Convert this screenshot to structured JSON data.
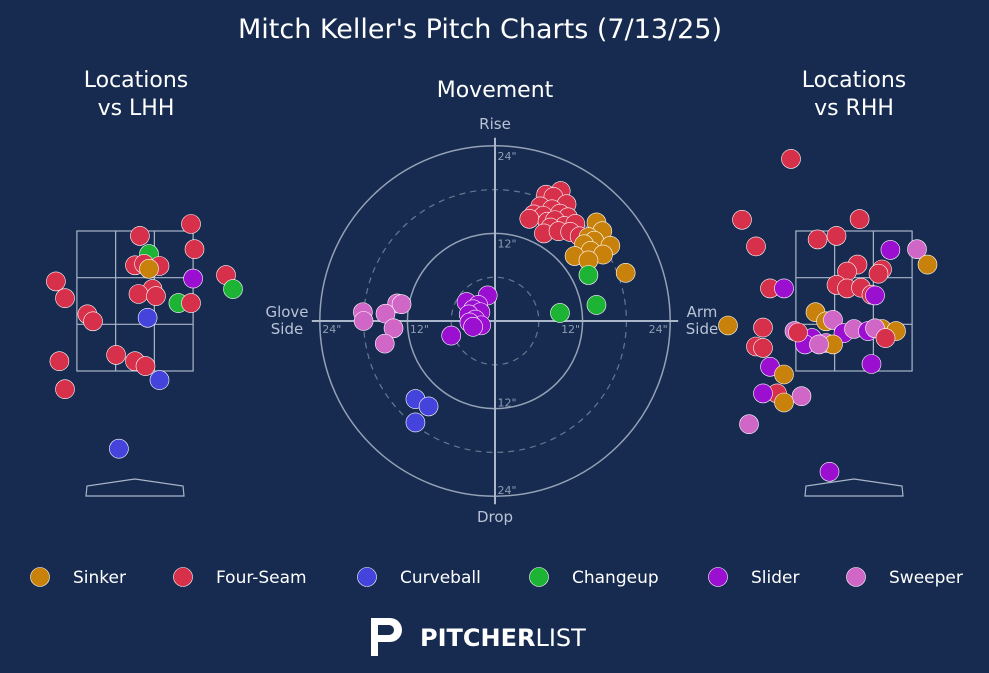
{
  "title": "Mitch Keller's Pitch Charts (7/13/25)",
  "colors": {
    "background": "#162b4f",
    "text": "#ffffff",
    "muted": "#b8c3d6",
    "Sinker": "#c8820c",
    "Four-Seam": "#d6304a",
    "Curveball": "#4444dc",
    "Changeup": "#1db334",
    "Slider": "#9a0fd0",
    "Sweeper": "#d066c6"
  },
  "legend": [
    "Sinker",
    "Four-Seam",
    "Curveball",
    "Changeup",
    "Slider",
    "Sweeper"
  ],
  "brand": {
    "bold": "PITCHER",
    "light": "LIST"
  },
  "chart_data": [
    {
      "type": "scatter",
      "title": "Locations\nvs LHH",
      "xlim": [
        -2.5,
        2.5
      ],
      "ylim": [
        -0.4,
        5.2
      ],
      "zone": {
        "x": [
          -0.83,
          0.83
        ],
        "y": [
          1.5,
          3.5
        ]
      },
      "points": [
        {
          "pitch": "Four-Seam",
          "x": 0.07,
          "y": 3.43
        },
        {
          "pitch": "Four-Seam",
          "x": 0.8,
          "y": 3.6
        },
        {
          "pitch": "Four-Seam",
          "x": 0.85,
          "y": 3.24
        },
        {
          "pitch": "Changeup",
          "x": 0.2,
          "y": 3.17
        },
        {
          "pitch": "Four-Seam",
          "x": 0.0,
          "y": 3.01
        },
        {
          "pitch": "Four-Seam",
          "x": 0.13,
          "y": 3.03
        },
        {
          "pitch": "Four-Seam",
          "x": 0.35,
          "y": 3.0
        },
        {
          "pitch": "Sinker",
          "x": 0.2,
          "y": 2.96
        },
        {
          "pitch": "Four-Seam",
          "x": 1.3,
          "y": 2.87
        },
        {
          "pitch": "Slider",
          "x": 0.83,
          "y": 2.82
        },
        {
          "pitch": "Four-Seam",
          "x": -1.13,
          "y": 2.78
        },
        {
          "pitch": "Changeup",
          "x": 1.4,
          "y": 2.67
        },
        {
          "pitch": "Four-Seam",
          "x": 0.25,
          "y": 2.67
        },
        {
          "pitch": "Four-Seam",
          "x": 0.05,
          "y": 2.6
        },
        {
          "pitch": "Four-Seam",
          "x": 0.3,
          "y": 2.57
        },
        {
          "pitch": "Four-Seam",
          "x": -1.0,
          "y": 2.54
        },
        {
          "pitch": "Changeup",
          "x": 0.62,
          "y": 2.47
        },
        {
          "pitch": "Four-Seam",
          "x": 0.8,
          "y": 2.47
        },
        {
          "pitch": "Four-Seam",
          "x": -0.68,
          "y": 2.31
        },
        {
          "pitch": "Four-Seam",
          "x": -0.6,
          "y": 2.21
        },
        {
          "pitch": "Curveball",
          "x": 0.18,
          "y": 2.26
        },
        {
          "pitch": "Four-Seam",
          "x": -0.27,
          "y": 1.73
        },
        {
          "pitch": "Four-Seam",
          "x": 0.0,
          "y": 1.64
        },
        {
          "pitch": "Four-Seam",
          "x": 0.15,
          "y": 1.57
        },
        {
          "pitch": "Four-Seam",
          "x": -1.08,
          "y": 1.64
        },
        {
          "pitch": "Curveball",
          "x": 0.35,
          "y": 1.37
        },
        {
          "pitch": "Four-Seam",
          "x": -1.0,
          "y": 1.24
        },
        {
          "pitch": "Curveball",
          "x": -0.23,
          "y": 0.39
        }
      ]
    },
    {
      "type": "scatter",
      "title": "Movement",
      "polar": true,
      "labels": {
        "top": "Rise",
        "bottom": "Drop",
        "left": "Glove\nSide",
        "right": "Arm\nSide"
      },
      "rings": [
        {
          "r": 6,
          "dashed": true
        },
        {
          "r": 12,
          "label": "12\"",
          "dashed": false
        },
        {
          "r": 18,
          "dashed": true
        },
        {
          "r": 24,
          "label": "24\"",
          "dashed": false
        }
      ],
      "xlim": [
        -24,
        24
      ],
      "ylim": [
        -24,
        24
      ],
      "points": [
        {
          "pitch": "Four-Seam",
          "x": 9.0,
          "y": 17.8
        },
        {
          "pitch": "Four-Seam",
          "x": 7.0,
          "y": 17.3
        },
        {
          "pitch": "Four-Seam",
          "x": 8.0,
          "y": 17.0
        },
        {
          "pitch": "Four-Seam",
          "x": 9.8,
          "y": 16.0
        },
        {
          "pitch": "Four-Seam",
          "x": 6.2,
          "y": 15.7
        },
        {
          "pitch": "Four-Seam",
          "x": 7.8,
          "y": 15.3
        },
        {
          "pitch": "Four-Seam",
          "x": 5.3,
          "y": 14.6
        },
        {
          "pitch": "Four-Seam",
          "x": 6.6,
          "y": 14.4
        },
        {
          "pitch": "Four-Seam",
          "x": 8.9,
          "y": 14.7
        },
        {
          "pitch": "Four-Seam",
          "x": 4.7,
          "y": 14.0
        },
        {
          "pitch": "Four-Seam",
          "x": 10.0,
          "y": 14.2
        },
        {
          "pitch": "Four-Seam",
          "x": 7.2,
          "y": 13.6
        },
        {
          "pitch": "Four-Seam",
          "x": 8.2,
          "y": 13.8
        },
        {
          "pitch": "Four-Seam",
          "x": 9.5,
          "y": 13.0
        },
        {
          "pitch": "Four-Seam",
          "x": 11.0,
          "y": 13.3
        },
        {
          "pitch": "Four-Seam",
          "x": 7.6,
          "y": 12.8
        },
        {
          "pitch": "Four-Seam",
          "x": 6.7,
          "y": 12.0
        },
        {
          "pitch": "Four-Seam",
          "x": 8.7,
          "y": 12.3
        },
        {
          "pitch": "Four-Seam",
          "x": 10.3,
          "y": 12.2
        },
        {
          "pitch": "Four-Seam",
          "x": 11.6,
          "y": 11.6
        },
        {
          "pitch": "Sinker",
          "x": 13.9,
          "y": 13.5
        },
        {
          "pitch": "Sinker",
          "x": 14.7,
          "y": 12.3
        },
        {
          "pitch": "Sinker",
          "x": 12.8,
          "y": 11.5
        },
        {
          "pitch": "Sinker",
          "x": 13.6,
          "y": 11.0
        },
        {
          "pitch": "Sinker",
          "x": 15.8,
          "y": 10.3
        },
        {
          "pitch": "Sinker",
          "x": 12.2,
          "y": 10.5
        },
        {
          "pitch": "Sinker",
          "x": 13.1,
          "y": 9.6
        },
        {
          "pitch": "Sinker",
          "x": 14.8,
          "y": 9.1
        },
        {
          "pitch": "Sinker",
          "x": 10.9,
          "y": 8.9
        },
        {
          "pitch": "Sinker",
          "x": 12.8,
          "y": 8.3
        },
        {
          "pitch": "Sinker",
          "x": 17.9,
          "y": 6.6
        },
        {
          "pitch": "Changeup",
          "x": 12.8,
          "y": 6.3
        },
        {
          "pitch": "Changeup",
          "x": 13.9,
          "y": 2.2
        },
        {
          "pitch": "Changeup",
          "x": 8.9,
          "y": 1.1
        },
        {
          "pitch": "Slider",
          "x": -1.0,
          "y": 3.5
        },
        {
          "pitch": "Slider",
          "x": -3.9,
          "y": 2.6
        },
        {
          "pitch": "Slider",
          "x": -2.3,
          "y": 2.2
        },
        {
          "pitch": "Slider",
          "x": -3.0,
          "y": 1.6
        },
        {
          "pitch": "Slider",
          "x": -2.0,
          "y": 1.2
        },
        {
          "pitch": "Slider",
          "x": -3.6,
          "y": 0.9
        },
        {
          "pitch": "Slider",
          "x": -2.7,
          "y": 0.2
        },
        {
          "pitch": "Slider",
          "x": -1.9,
          "y": -0.6
        },
        {
          "pitch": "Slider",
          "x": -3.5,
          "y": -0.2
        },
        {
          "pitch": "Slider",
          "x": -3.0,
          "y": -0.8
        },
        {
          "pitch": "Slider",
          "x": -6.0,
          "y": -2.0
        },
        {
          "pitch": "Sweeper",
          "x": -13.4,
          "y": 2.4
        },
        {
          "pitch": "Sweeper",
          "x": -12.8,
          "y": 2.3
        },
        {
          "pitch": "Sweeper",
          "x": -18.1,
          "y": 1.2
        },
        {
          "pitch": "Sweeper",
          "x": -15.0,
          "y": 1.0
        },
        {
          "pitch": "Sweeper",
          "x": -18.0,
          "y": 0.0
        },
        {
          "pitch": "Sweeper",
          "x": -13.9,
          "y": -1.0
        },
        {
          "pitch": "Sweeper",
          "x": -15.1,
          "y": -3.1
        },
        {
          "pitch": "Curveball",
          "x": -10.9,
          "y": -10.7
        },
        {
          "pitch": "Curveball",
          "x": -9.1,
          "y": -11.7
        },
        {
          "pitch": "Curveball",
          "x": -10.9,
          "y": -13.9
        }
      ]
    },
    {
      "type": "scatter",
      "title": "Locations\nvs RHH",
      "xlim": [
        -2.5,
        2.5
      ],
      "ylim": [
        -0.4,
        5.2
      ],
      "zone": {
        "x": [
          -0.83,
          0.83
        ],
        "y": [
          1.5,
          3.5
        ]
      },
      "points": [
        {
          "pitch": "Four-Seam",
          "x": -0.9,
          "y": 4.53
        },
        {
          "pitch": "Four-Seam",
          "x": -1.6,
          "y": 3.66
        },
        {
          "pitch": "Four-Seam",
          "x": 0.08,
          "y": 3.67
        },
        {
          "pitch": "Four-Seam",
          "x": -0.25,
          "y": 3.43
        },
        {
          "pitch": "Four-Seam",
          "x": -0.52,
          "y": 3.38
        },
        {
          "pitch": "Four-Seam",
          "x": -1.4,
          "y": 3.28
        },
        {
          "pitch": "Slider",
          "x": 0.52,
          "y": 3.23
        },
        {
          "pitch": "Sweeper",
          "x": 0.9,
          "y": 3.24
        },
        {
          "pitch": "Four-Seam",
          "x": 0.05,
          "y": 3.02
        },
        {
          "pitch": "Four-Seam",
          "x": -0.1,
          "y": 2.92
        },
        {
          "pitch": "Four-Seam",
          "x": 0.4,
          "y": 2.95
        },
        {
          "pitch": "Four-Seam",
          "x": 0.35,
          "y": 2.89
        },
        {
          "pitch": "Sinker",
          "x": 1.05,
          "y": 3.02
        },
        {
          "pitch": "Four-Seam",
          "x": -0.25,
          "y": 2.73
        },
        {
          "pitch": "Four-Seam",
          "x": -0.1,
          "y": 2.68
        },
        {
          "pitch": "Four-Seam",
          "x": 0.1,
          "y": 2.69
        },
        {
          "pitch": "Four-Seam",
          "x": -1.2,
          "y": 2.68
        },
        {
          "pitch": "Slider",
          "x": -1.0,
          "y": 2.68
        },
        {
          "pitch": "Four-Seam",
          "x": 0.25,
          "y": 2.59
        },
        {
          "pitch": "Slider",
          "x": 0.3,
          "y": 2.58
        },
        {
          "pitch": "Sinker",
          "x": -0.55,
          "y": 2.34
        },
        {
          "pitch": "Sinker",
          "x": -0.4,
          "y": 2.21
        },
        {
          "pitch": "Sweeper",
          "x": -0.3,
          "y": 2.23
        },
        {
          "pitch": "Sinker",
          "x": -1.8,
          "y": 2.15
        },
        {
          "pitch": "Four-Seam",
          "x": -1.3,
          "y": 2.12
        },
        {
          "pitch": "Sweeper",
          "x": -0.85,
          "y": 2.07
        },
        {
          "pitch": "Slider",
          "x": -0.6,
          "y": 1.97
        },
        {
          "pitch": "Sweeper",
          "x": -0.4,
          "y": 1.9
        },
        {
          "pitch": "Slider",
          "x": -0.7,
          "y": 1.88
        },
        {
          "pitch": "Four-Seam",
          "x": -0.8,
          "y": 2.05
        },
        {
          "pitch": "Slider",
          "x": -0.15,
          "y": 2.04
        },
        {
          "pitch": "Sweeper",
          "x": 0.0,
          "y": 2.1
        },
        {
          "pitch": "Slider",
          "x": 0.2,
          "y": 2.07
        },
        {
          "pitch": "Sinker",
          "x": 0.4,
          "y": 2.1
        },
        {
          "pitch": "Sweeper",
          "x": 0.3,
          "y": 2.11
        },
        {
          "pitch": "Sinker",
          "x": 0.6,
          "y": 2.07
        },
        {
          "pitch": "Sinker",
          "x": -0.3,
          "y": 1.88
        },
        {
          "pitch": "Sweeper",
          "x": -0.5,
          "y": 1.88
        },
        {
          "pitch": "Four-Seam",
          "x": 0.45,
          "y": 1.97
        },
        {
          "pitch": "Four-Seam",
          "x": -1.4,
          "y": 1.85
        },
        {
          "pitch": "Four-Seam",
          "x": -1.3,
          "y": 1.83
        },
        {
          "pitch": "Slider",
          "x": 0.25,
          "y": 1.6
        },
        {
          "pitch": "Slider",
          "x": -1.2,
          "y": 1.56
        },
        {
          "pitch": "Sinker",
          "x": -1.0,
          "y": 1.45
        },
        {
          "pitch": "Four-Seam",
          "x": -1.1,
          "y": 1.18
        },
        {
          "pitch": "Slider",
          "x": -1.3,
          "y": 1.18
        },
        {
          "pitch": "Sweeper",
          "x": -0.75,
          "y": 1.14
        },
        {
          "pitch": "Sinker",
          "x": -1.0,
          "y": 1.05
        },
        {
          "pitch": "Sweeper",
          "x": -1.5,
          "y": 0.74
        },
        {
          "pitch": "Slider",
          "x": -0.35,
          "y": 0.06
        }
      ]
    }
  ]
}
